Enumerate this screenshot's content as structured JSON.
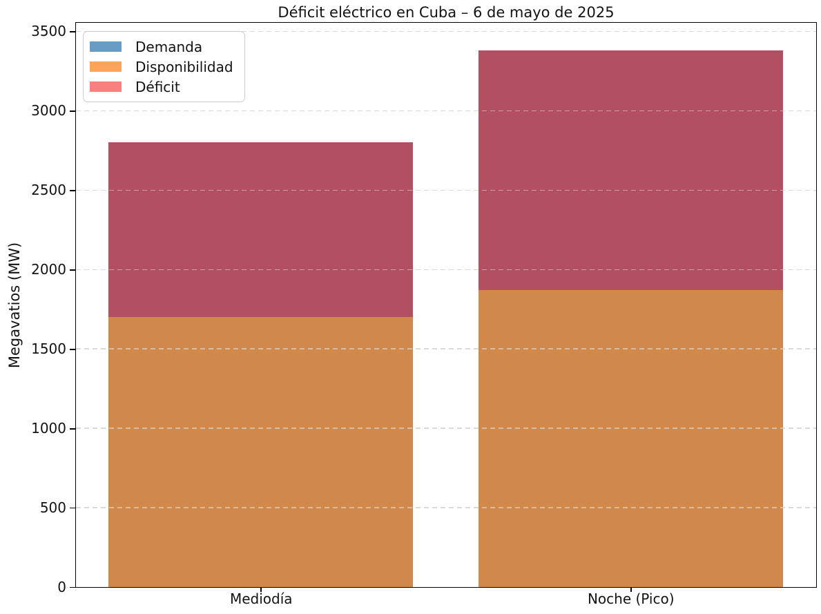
{
  "chart_data": {
    "type": "bar",
    "title": "Déficit eléctrico en Cuba – 6 de mayo de 2025",
    "ylabel": "Megavatios (MW)",
    "xlabel": "",
    "categories": [
      "Mediodía",
      "Noche (Pico)"
    ],
    "series": [
      {
        "name": "Demanda",
        "legend_color": "#689CC5",
        "values": [
          2800,
          3380
        ]
      },
      {
        "name": "Disponibilidad",
        "legend_color": "#FBA55C",
        "values": [
          1700,
          1870
        ]
      },
      {
        "name": "Déficit",
        "legend_color": "#F8807E",
        "values": [
          1100,
          1510
        ]
      }
    ],
    "bar_blend_colors": {
      "disponibilidad_visible": "#D0894A",
      "deficit_visible": "#B25062"
    },
    "ylim": [
      0,
      3550
    ],
    "yticks": [
      0,
      500,
      1000,
      1500,
      2000,
      2500,
      3000,
      3500
    ],
    "grid": {
      "axis": "y",
      "style": "dashed",
      "color": "#cbcbcb"
    },
    "legend_position": "upper left",
    "bar_mode": "overlay"
  }
}
